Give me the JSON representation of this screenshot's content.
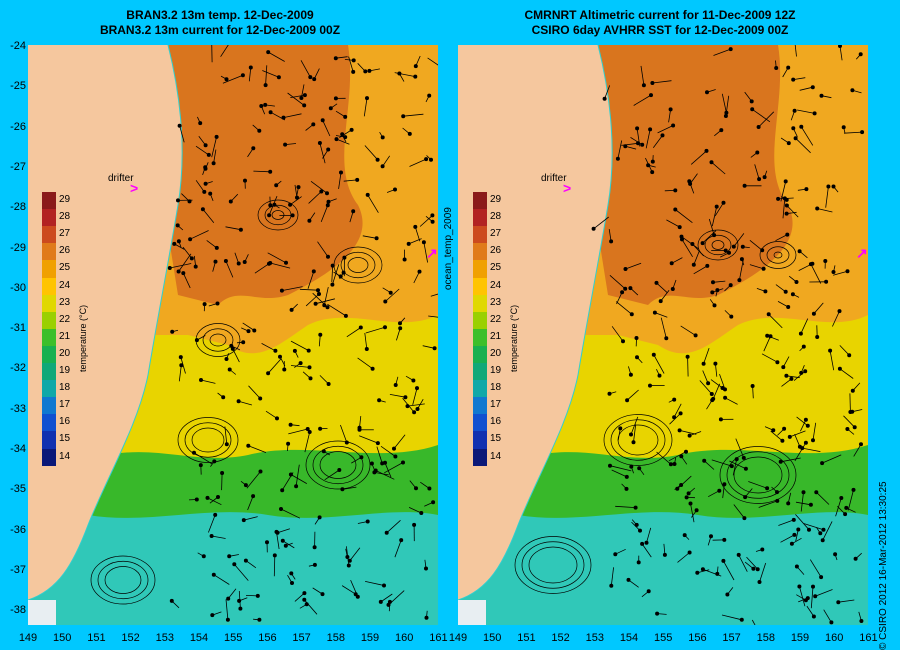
{
  "titles": {
    "left_line1": "BRAN3.2 13m temp. 12-Dec-2009",
    "left_line2": "BRAN3.2 13m current for 12-Dec-2009 00Z",
    "right_line1": "CMRNRT Altimetric current for 11-Dec-2009 12Z",
    "right_line2": "CSIRO 6day AVHRR SST for 12-Dec-2009 00Z"
  },
  "side_label": "ocean_temp_2009",
  "credit": "© CSIRO 2012  16-Mar-2012 13:30:25",
  "drifter_label": "drifter",
  "colorbar": {
    "title": "temperature (°C)",
    "ticks": [
      "29",
      "28",
      "27",
      "26",
      "25",
      "24",
      "23",
      "22",
      "21",
      "20",
      "19",
      "18",
      "17",
      "16",
      "15",
      "14"
    ],
    "colors": [
      "#8b1a1a",
      "#b22222",
      "#cc4a1e",
      "#e07a1a",
      "#f0a000",
      "#ffc400",
      "#e0d800",
      "#9ad000",
      "#3cbf2a",
      "#18b050",
      "#10a878",
      "#10a8a8",
      "#1078d0",
      "#1050d0",
      "#1030b0",
      "#0a1878"
    ]
  },
  "lat_labels": [
    "-24",
    "-25",
    "-26",
    "-27",
    "-28",
    "-29",
    "-30",
    "-31",
    "-32",
    "-33",
    "-34",
    "-35",
    "-36",
    "-37",
    "-38"
  ],
  "lon_labels": [
    "149",
    "150",
    "151",
    "152",
    "153",
    "154",
    "155",
    "156",
    "157",
    "158",
    "159",
    "160",
    "161"
  ],
  "map_colors": {
    "land": "#f5c79e",
    "warm": "#d9751e",
    "orange": "#f0a820",
    "yellow": "#e8d400",
    "green": "#38b82a",
    "cyan": "#30c8b8",
    "coast": "#30d0d0"
  }
}
